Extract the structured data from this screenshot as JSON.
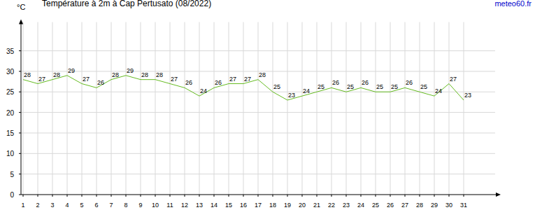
{
  "chart_data": {
    "type": "line",
    "title": "Température à 2m à Cap Pertusato (08/2022)",
    "y_label": "°C",
    "source": "meteo60.fr",
    "x": [
      1,
      2,
      3,
      4,
      5,
      6,
      7,
      8,
      9,
      10,
      11,
      12,
      13,
      14,
      15,
      16,
      17,
      18,
      19,
      20,
      21,
      22,
      23,
      24,
      25,
      26,
      27,
      28,
      29,
      30,
      31
    ],
    "values": [
      28,
      27,
      28,
      29,
      27,
      26,
      28,
      29,
      28,
      28,
      27,
      26,
      24,
      26,
      27,
      27,
      28,
      25,
      23,
      24,
      25,
      26,
      25,
      26,
      25,
      25,
      26,
      25,
      24,
      27,
      23
    ],
    "color": "#66bb22",
    "xlim": [
      0.857,
      33.333
    ],
    "xticks": [
      1,
      2,
      3,
      4,
      5,
      6,
      7,
      8,
      9,
      10,
      11,
      12,
      13,
      14,
      15,
      16,
      17,
      18,
      19,
      20,
      21,
      22,
      23,
      24,
      25,
      26,
      27,
      28,
      29,
      30,
      31
    ],
    "ylim": [
      0,
      42
    ],
    "yticks": [
      0,
      5,
      10,
      15,
      20,
      25,
      30,
      35
    ],
    "grid": true,
    "data_labels": true
  }
}
